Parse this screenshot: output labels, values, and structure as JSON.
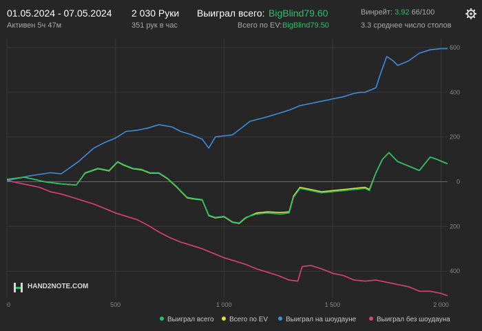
{
  "header": {
    "date_range": "01.05.2024 - 07.05.2024",
    "active_time": "Активен 5ч 47м",
    "hands": "2 030 Руки",
    "hands_per_hour": "351 рук в час",
    "won_total_label": "Выиграл всего:",
    "won_total_value": "BigBlind79.60",
    "ev_total_label": "Всего по EV:",
    "ev_total_value": "BigBlind79.50",
    "winrate_label": "Винрейт:",
    "winrate_value": "3.92",
    "winrate_suffix": "66/100",
    "avg_tables": "3.3 среднее число столов"
  },
  "logo": {
    "text": "HAND2NOTE.COM"
  },
  "colors": {
    "won": "#22c46a",
    "ev": "#e0e040",
    "showdown": "#3b8fe0",
    "nonshowdown": "#e0407a",
    "background": "#262626"
  },
  "chart_data": {
    "type": "line",
    "title": "",
    "xlabel": "",
    "ylabel": "",
    "xlim": [
      0,
      2030
    ],
    "ylim": [
      -520,
      640
    ],
    "x_ticks": [
      0,
      500,
      1000,
      1500,
      2000
    ],
    "x_tick_labels": [
      "0",
      "500",
      "1 000",
      "1 500",
      "2 000"
    ],
    "y_ticks": [
      -400,
      -200,
      0,
      200,
      400,
      600
    ],
    "y_tick_labels": [
      "400",
      "200",
      "0",
      "200",
      "400",
      "600"
    ],
    "grid": true,
    "legend_position": "bottom",
    "series": [
      {
        "name": "Выиграл всего",
        "color": "#22c46a",
        "points": [
          [
            0,
            10
          ],
          [
            40,
            15
          ],
          [
            80,
            20
          ],
          [
            120,
            12
          ],
          [
            170,
            0
          ],
          [
            250,
            -10
          ],
          [
            320,
            -15
          ],
          [
            360,
            40
          ],
          [
            420,
            60
          ],
          [
            470,
            50
          ],
          [
            510,
            90
          ],
          [
            540,
            75
          ],
          [
            580,
            60
          ],
          [
            620,
            55
          ],
          [
            660,
            40
          ],
          [
            700,
            40
          ],
          [
            740,
            15
          ],
          [
            780,
            -20
          ],
          [
            800,
            -40
          ],
          [
            830,
            -70
          ],
          [
            860,
            -75
          ],
          [
            900,
            -80
          ],
          [
            930,
            -150
          ],
          [
            960,
            -160
          ],
          [
            1000,
            -155
          ],
          [
            1040,
            -180
          ],
          [
            1070,
            -185
          ],
          [
            1100,
            -160
          ],
          [
            1150,
            -145
          ],
          [
            1200,
            -140
          ],
          [
            1260,
            -145
          ],
          [
            1300,
            -140
          ],
          [
            1320,
            -70
          ],
          [
            1350,
            -30
          ],
          [
            1400,
            -40
          ],
          [
            1450,
            -50
          ],
          [
            1500,
            -45
          ],
          [
            1550,
            -40
          ],
          [
            1600,
            -35
          ],
          [
            1650,
            -30
          ],
          [
            1670,
            -40
          ],
          [
            1700,
            40
          ],
          [
            1730,
            100
          ],
          [
            1760,
            130
          ],
          [
            1800,
            90
          ],
          [
            1850,
            70
          ],
          [
            1900,
            50
          ],
          [
            1950,
            110
          ],
          [
            1980,
            100
          ],
          [
            2030,
            80
          ]
        ]
      },
      {
        "name": "Всего по EV",
        "color": "#e0e040",
        "points": [
          [
            0,
            10
          ],
          [
            40,
            15
          ],
          [
            80,
            20
          ],
          [
            120,
            12
          ],
          [
            170,
            0
          ],
          [
            250,
            -10
          ],
          [
            320,
            -15
          ],
          [
            360,
            38
          ],
          [
            420,
            58
          ],
          [
            470,
            48
          ],
          [
            510,
            88
          ],
          [
            540,
            73
          ],
          [
            580,
            58
          ],
          [
            620,
            53
          ],
          [
            660,
            38
          ],
          [
            700,
            38
          ],
          [
            740,
            13
          ],
          [
            780,
            -22
          ],
          [
            800,
            -42
          ],
          [
            830,
            -72
          ],
          [
            860,
            -77
          ],
          [
            900,
            -82
          ],
          [
            930,
            -152
          ],
          [
            960,
            -162
          ],
          [
            1000,
            -157
          ],
          [
            1040,
            -182
          ],
          [
            1070,
            -187
          ],
          [
            1100,
            -162
          ],
          [
            1150,
            -140
          ],
          [
            1200,
            -135
          ],
          [
            1260,
            -138
          ],
          [
            1300,
            -135
          ],
          [
            1320,
            -65
          ],
          [
            1350,
            -25
          ],
          [
            1400,
            -35
          ],
          [
            1450,
            -45
          ],
          [
            1500,
            -40
          ],
          [
            1550,
            -35
          ],
          [
            1600,
            -30
          ],
          [
            1650,
            -25
          ],
          [
            1670,
            -35
          ],
          [
            1700,
            40
          ],
          [
            1730,
            100
          ],
          [
            1760,
            130
          ],
          [
            1800,
            90
          ],
          [
            1850,
            70
          ],
          [
            1900,
            50
          ],
          [
            1950,
            110
          ],
          [
            1980,
            100
          ],
          [
            2030,
            80
          ]
        ]
      },
      {
        "name": "Выиграл на шоудауне",
        "color": "#3b8fe0",
        "points": [
          [
            0,
            5
          ],
          [
            100,
            25
          ],
          [
            200,
            40
          ],
          [
            250,
            35
          ],
          [
            330,
            90
          ],
          [
            400,
            150
          ],
          [
            450,
            175
          ],
          [
            500,
            195
          ],
          [
            550,
            225
          ],
          [
            600,
            230
          ],
          [
            650,
            240
          ],
          [
            700,
            255
          ],
          [
            760,
            245
          ],
          [
            800,
            225
          ],
          [
            850,
            210
          ],
          [
            900,
            190
          ],
          [
            930,
            150
          ],
          [
            960,
            200
          ],
          [
            1000,
            205
          ],
          [
            1040,
            210
          ],
          [
            1080,
            240
          ],
          [
            1120,
            270
          ],
          [
            1200,
            290
          ],
          [
            1250,
            305
          ],
          [
            1300,
            320
          ],
          [
            1350,
            340
          ],
          [
            1400,
            350
          ],
          [
            1450,
            360
          ],
          [
            1500,
            370
          ],
          [
            1550,
            380
          ],
          [
            1600,
            395
          ],
          [
            1630,
            400
          ],
          [
            1650,
            400
          ],
          [
            1700,
            420
          ],
          [
            1720,
            480
          ],
          [
            1750,
            560
          ],
          [
            1780,
            540
          ],
          [
            1800,
            520
          ],
          [
            1850,
            540
          ],
          [
            1900,
            575
          ],
          [
            1950,
            590
          ],
          [
            2000,
            595
          ],
          [
            2030,
            595
          ]
        ]
      },
      {
        "name": "Выиграл без шоудауна",
        "color": "#e0407a",
        "points": [
          [
            0,
            5
          ],
          [
            50,
            -5
          ],
          [
            100,
            -15
          ],
          [
            150,
            -25
          ],
          [
            200,
            -45
          ],
          [
            250,
            -55
          ],
          [
            300,
            -70
          ],
          [
            350,
            -85
          ],
          [
            400,
            -100
          ],
          [
            450,
            -120
          ],
          [
            500,
            -140
          ],
          [
            550,
            -155
          ],
          [
            600,
            -170
          ],
          [
            650,
            -195
          ],
          [
            700,
            -225
          ],
          [
            750,
            -250
          ],
          [
            800,
            -270
          ],
          [
            850,
            -285
          ],
          [
            900,
            -300
          ],
          [
            950,
            -320
          ],
          [
            1000,
            -340
          ],
          [
            1050,
            -355
          ],
          [
            1100,
            -370
          ],
          [
            1150,
            -390
          ],
          [
            1200,
            -405
          ],
          [
            1250,
            -420
          ],
          [
            1300,
            -440
          ],
          [
            1340,
            -445
          ],
          [
            1360,
            -380
          ],
          [
            1400,
            -375
          ],
          [
            1450,
            -390
          ],
          [
            1500,
            -410
          ],
          [
            1550,
            -420
          ],
          [
            1600,
            -440
          ],
          [
            1650,
            -445
          ],
          [
            1700,
            -440
          ],
          [
            1750,
            -450
          ],
          [
            1800,
            -460
          ],
          [
            1850,
            -470
          ],
          [
            1900,
            -490
          ],
          [
            1950,
            -490
          ],
          [
            2000,
            -500
          ],
          [
            2030,
            -510
          ]
        ]
      }
    ]
  }
}
